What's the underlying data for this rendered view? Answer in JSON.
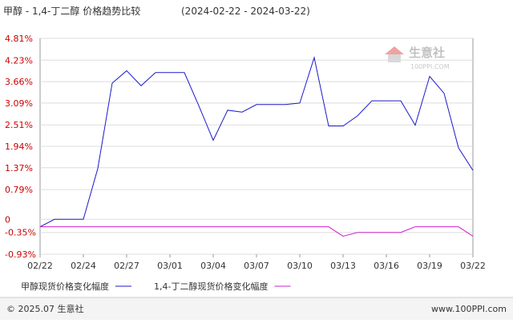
{
  "chart_data": {
    "type": "line",
    "title": "甲醇 - 1,4-丁二醇 价格趋势比较",
    "subtitle": "(2024-02-22 - 2024-03-22)",
    "watermark": {
      "brand": "生意社",
      "site": "100PPI.COM"
    },
    "footer": {
      "left": "© 2025.07 生意社",
      "right": "www.100PPI.com"
    },
    "categories": [
      "02/22",
      null,
      null,
      "02/24",
      null,
      null,
      "02/27",
      null,
      null,
      "03/01",
      null,
      null,
      "03/04",
      null,
      null,
      "03/07",
      null,
      null,
      "03/10",
      null,
      null,
      "03/13",
      null,
      null,
      "03/16",
      null,
      null,
      "03/19",
      null,
      null,
      "03/22"
    ],
    "series": [
      {
        "name": "甲醇现货价格变化幅度",
        "color": "#1a1acc",
        "values": [
          -0.2,
          0,
          0,
          0,
          1.35,
          3.62,
          3.95,
          3.55,
          3.9,
          3.9,
          3.9,
          3.02,
          2.1,
          2.9,
          2.85,
          3.05,
          3.05,
          3.05,
          3.09,
          4.3,
          2.48,
          2.48,
          2.75,
          3.15,
          3.15,
          3.15,
          2.5,
          3.8,
          3.35,
          1.9,
          1.3
        ]
      },
      {
        "name": "1,4-丁二醇现货价格变化幅度",
        "color": "#cc22cc",
        "values": [
          -0.2,
          -0.2,
          -0.2,
          -0.2,
          -0.2,
          -0.2,
          -0.2,
          -0.2,
          -0.2,
          -0.2,
          -0.2,
          -0.2,
          -0.2,
          -0.2,
          -0.2,
          -0.2,
          -0.2,
          -0.2,
          -0.2,
          -0.2,
          -0.2,
          -0.45,
          -0.35,
          -0.35,
          -0.35,
          -0.35,
          -0.2,
          -0.2,
          -0.2,
          -0.2,
          -0.45
        ]
      }
    ],
    "ylim": [
      -0.93,
      4.81
    ],
    "yticks": [
      {
        "value": 4.81,
        "label": "4.81%"
      },
      {
        "value": 4.23,
        "label": "4.23%"
      },
      {
        "value": 3.66,
        "label": "3.66%"
      },
      {
        "value": 3.09,
        "label": "3.09%"
      },
      {
        "value": 2.51,
        "label": "2.51%"
      },
      {
        "value": 1.94,
        "label": "1.94%"
      },
      {
        "value": 1.37,
        "label": "1.37%"
      },
      {
        "value": 0.79,
        "label": "0.79%"
      },
      0,
      {
        "value": -0.35,
        "label": "-0.35%"
      },
      {
        "value": -0.93,
        "label": "-0.93%"
      }
    ],
    "grid": true
  }
}
